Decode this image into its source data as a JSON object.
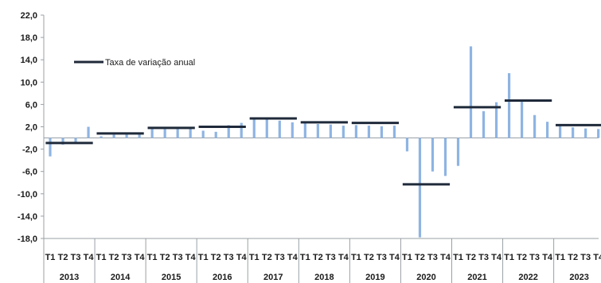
{
  "chart_data": {
    "type": "bar",
    "title": "",
    "xlabel": "",
    "ylabel": "",
    "ylim": [
      -18,
      22
    ],
    "yticks": [
      "22,0",
      "18,0",
      "14,0",
      "10,0",
      "6,0",
      "2,0",
      "-2,0",
      "-6,0",
      "-10,0",
      "-14,0",
      "-18,0"
    ],
    "ytick_values": [
      22,
      18,
      14,
      10,
      6,
      2,
      -2,
      -6,
      -10,
      -14,
      -18
    ],
    "quarter_labels": [
      "T1",
      "T2",
      "T3",
      "T4"
    ],
    "years": [
      "2013",
      "2014",
      "2015",
      "2016",
      "2017",
      "2018",
      "2019",
      "2020",
      "2021",
      "2022",
      "2023"
    ],
    "grid": false,
    "legend_position": "top-left",
    "colors": {
      "bars": "#8eb4e3",
      "annual": "#1f2a3a",
      "axis": "#9aa0a6"
    },
    "series": [
      {
        "name": "",
        "kind": "bar",
        "values": [
          -3.3,
          -1.2,
          -0.7,
          2.0,
          0.3,
          0.6,
          0.8,
          0.9,
          1.9,
          1.6,
          1.6,
          1.8,
          1.3,
          1.1,
          2.3,
          2.7,
          3.5,
          3.3,
          3.1,
          2.8,
          2.7,
          2.5,
          2.4,
          2.2,
          2.3,
          2.2,
          2.1,
          2.2,
          -2.4,
          -17.8,
          -6.0,
          -6.8,
          -5.0,
          16.4,
          4.8,
          6.4,
          11.6,
          6.8,
          4.1,
          2.9,
          2.1,
          1.9,
          1.7,
          1.6
        ]
      },
      {
        "name": "Taxa de variação anual",
        "kind": "annual-line",
        "values": [
          -0.9,
          0.8,
          1.8,
          2.0,
          3.5,
          2.8,
          2.7,
          -8.3,
          5.5,
          6.7,
          2.3
        ]
      }
    ]
  }
}
